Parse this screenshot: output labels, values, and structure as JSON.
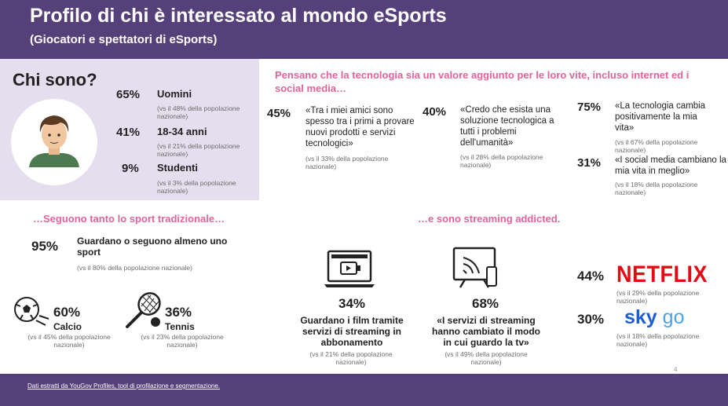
{
  "header": {
    "title": "Profilo di chi è interessato al mondo eSports",
    "subtitle": "(Giocatori e spettatori di eSports)"
  },
  "who": {
    "title": "Chi sono?",
    "items": [
      {
        "value": "65%",
        "label": "Uomini",
        "note": "(vs il 48% della popolazione nazionale)"
      },
      {
        "value": "41%",
        "label": "18-34 anni",
        "note": "(vs il 21% della popolazione nazionale)"
      },
      {
        "value": "9%",
        "label": "Studenti",
        "note": "(vs il 3% della popolazione nazionale)"
      }
    ]
  },
  "tech": {
    "heading": "Pensano che la tecnologia sia un valore aggiunto per le loro vite, incluso internet ed i social media…",
    "items": [
      {
        "value": "45%",
        "quote": "«Tra i miei amici sono spesso tra i primi a provare nuovi prodotti e servizi tecnologici»",
        "note": "(vs il 33% della popolazione nazionale)"
      },
      {
        "value": "40%",
        "quote": "«Credo che esista una soluzione tecnologica a tutti i problemi dell'umanità»",
        "note": "(vs il 28% della popolazione nazionale)"
      },
      {
        "value": "75%",
        "quote": "«La tecnologia cambia positivamente la mia vita»",
        "note": "(vs il 67% della popolazione nazionale)"
      },
      {
        "value": "31%",
        "quote": "«I social media cambiano la mia vita in meglio»",
        "note": "(vs il 18% della popolazione nazionale)"
      }
    ]
  },
  "sport": {
    "heading": "…Seguono tanto lo sport tradizionale…",
    "main": {
      "value": "95%",
      "label": "Guardano o seguono almeno uno sport",
      "note": "(vs il 80% della popolazione nazionale)"
    },
    "items": [
      {
        "value": "60%",
        "label": "Calcio",
        "note": "(vs il 45% della popolazione nazionale)"
      },
      {
        "value": "36%",
        "label": "Tennis",
        "note": "(vs il 23% della popolazione nazionale)"
      }
    ]
  },
  "streaming": {
    "heading": "…e sono streaming addicted.",
    "items": [
      {
        "value": "34%",
        "label": "Guardano i film tramite servizi di streaming in abbonamento",
        "note": "(vs il 21% della popolazione nazionale)"
      },
      {
        "value": "68%",
        "label": "«I servizi di streaming hanno cambiato il modo in cui guardo la tv»",
        "note": "(vs il 49% della popolazione nazionale)"
      }
    ],
    "brands": [
      {
        "value": "44%",
        "logo": [
          "NETFLIX"
        ],
        "note": "(vs il 29% della popolazione nazionale)"
      },
      {
        "value": "30%",
        "logo": [
          "sky",
          "go"
        ],
        "note": "(vs il 18% della popolazione nazionale)"
      }
    ]
  },
  "footer": {
    "text": "Dati estratti da YouGov Profiles, tool di profilazione e segmentazione.",
    "page": "4"
  }
}
